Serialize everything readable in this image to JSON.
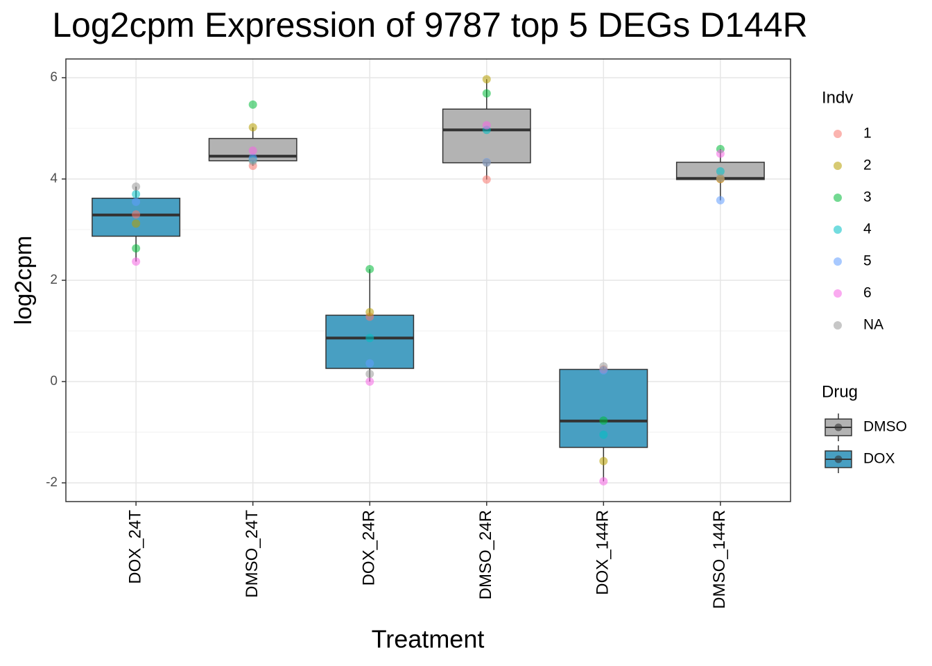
{
  "chart_data": {
    "type": "box",
    "title": "Log2cpm Expression of 9787 top 5 DEGs D144R",
    "x_label": "Treatment",
    "y_label": "log2cpm",
    "categories": [
      "DOX_24T",
      "DMSO_24T",
      "DOX_24R",
      "DMSO_24R",
      "DOX_144R",
      "DMSO_144R"
    ],
    "ylim": [
      -2.37,
      6.37
    ],
    "yticks": [
      -2,
      0,
      2,
      4,
      6
    ],
    "grid": true,
    "boxes": [
      {
        "drug": "DOX",
        "low": 2.37,
        "q1": 2.87,
        "median": 3.29,
        "q3": 3.62,
        "high": 3.85
      },
      {
        "drug": "DMSO",
        "low": 4.26,
        "q1": 4.36,
        "median": 4.45,
        "q3": 4.8,
        "high": 5.02
      },
      {
        "drug": "DOX",
        "low": 0.0,
        "q1": 0.26,
        "median": 0.86,
        "q3": 1.31,
        "high": 2.22
      },
      {
        "drug": "DMSO",
        "low": 3.99,
        "q1": 4.32,
        "median": 4.97,
        "q3": 5.38,
        "high": 5.97
      },
      {
        "drug": "DOX",
        "low": -1.97,
        "q1": -1.3,
        "median": -0.78,
        "q3": 0.24,
        "high": 0.3
      },
      {
        "drug": "DMSO",
        "low": 3.58,
        "q1": 3.99,
        "median": 4.01,
        "q3": 4.33,
        "high": 4.59
      }
    ],
    "drug_legend": {
      "title": "Drug",
      "items": [
        {
          "name": "DMSO",
          "color": "#b3b3b3"
        },
        {
          "name": "DOX",
          "color": "#489fc2"
        }
      ]
    },
    "indv_legend_title": "Indv",
    "series": [
      {
        "name": "1",
        "color": "#F8766D",
        "values": [
          3.3,
          4.26,
          1.28,
          3.99,
          0.24,
          4.0
        ]
      },
      {
        "name": "2",
        "color": "#B79F00",
        "values": [
          3.12,
          5.02,
          1.37,
          5.97,
          -1.57,
          4.0
        ]
      },
      {
        "name": "3",
        "color": "#00BA38",
        "values": [
          2.63,
          5.47,
          2.22,
          5.69,
          -0.77,
          4.59
        ]
      },
      {
        "name": "4",
        "color": "#00BFC4",
        "values": [
          3.7,
          4.38,
          0.86,
          4.97,
          -1.05,
          4.15
        ]
      },
      {
        "name": "5",
        "color": "#619CFF",
        "values": [
          3.55,
          4.42,
          0.36,
          4.33,
          0.22,
          3.58
        ]
      },
      {
        "name": "6",
        "color": "#F564E3",
        "values": [
          2.37,
          4.56,
          0.0,
          5.06,
          -1.97,
          4.5
        ]
      },
      {
        "name": "NA",
        "color": "#999999",
        "values": [
          3.85,
          4.35,
          0.15,
          4.32,
          0.3,
          4.02
        ]
      }
    ]
  }
}
